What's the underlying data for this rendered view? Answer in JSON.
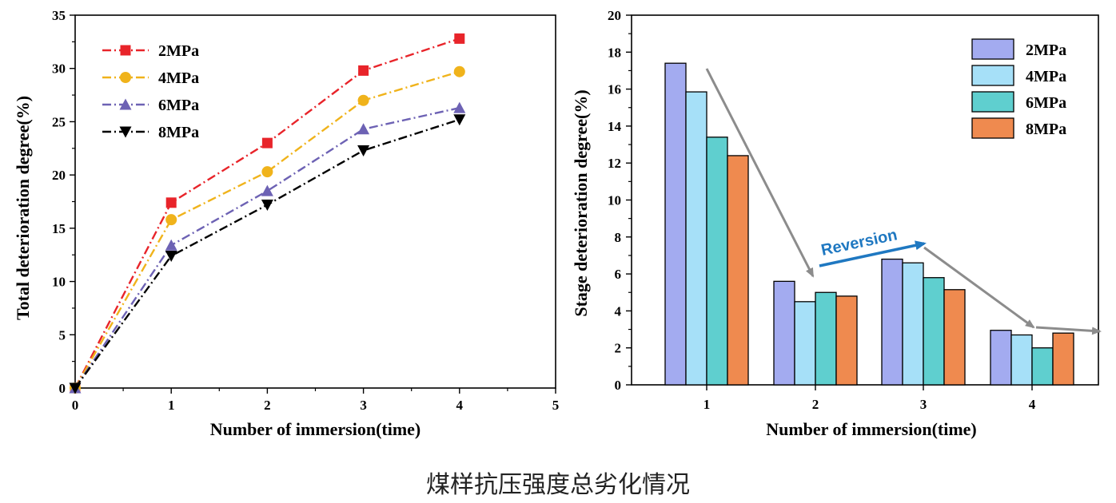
{
  "caption": "煤样抗压强度总劣化情况",
  "colors": {
    "line": {
      "2MPa": "#e8242a",
      "4MPa": "#f0b31b",
      "6MPa": "#6d62b4",
      "8MPa": "#000000"
    },
    "bar_fill": {
      "2MPa": "#a3abf0",
      "4MPa": "#a6e0f8",
      "6MPa": "#5fcfcf",
      "8MPa": "#ef8a4f"
    },
    "annotation_gray": "#8c8c8c",
    "annotation_blue": "#1f78c1"
  },
  "chart_data": [
    {
      "type": "line",
      "xlabel": "Number of immersion(time)",
      "ylabel": "Total deterioration degree(%)",
      "xlim": [
        0,
        5
      ],
      "ylim": [
        0,
        35
      ],
      "xticks": [
        0,
        1,
        2,
        3,
        4,
        5
      ],
      "yticks": [
        0,
        5,
        10,
        15,
        20,
        25,
        30,
        35
      ],
      "line_style": "dash-dot",
      "legend_position": "top-left",
      "x": [
        0,
        1,
        2,
        3,
        4
      ],
      "series": [
        {
          "name": "2MPa",
          "marker": "square",
          "values": [
            0,
            17.4,
            23.0,
            29.8,
            32.8
          ]
        },
        {
          "name": "4MPa",
          "marker": "circle",
          "values": [
            0,
            15.8,
            20.3,
            27.0,
            29.7
          ]
        },
        {
          "name": "6MPa",
          "marker": "triangle-up",
          "values": [
            0,
            13.4,
            18.5,
            24.3,
            26.3
          ]
        },
        {
          "name": "8MPa",
          "marker": "triangle-down",
          "values": [
            0,
            12.4,
            17.2,
            22.3,
            25.2
          ]
        }
      ]
    },
    {
      "type": "bar",
      "xlabel": "Number of immersion(time)",
      "ylabel": "Stage deterioration degree(%)",
      "ylim": [
        0,
        20
      ],
      "yticks": [
        0,
        2,
        4,
        6,
        8,
        10,
        12,
        14,
        16,
        18,
        20
      ],
      "categories": [
        "1",
        "2",
        "3",
        "4"
      ],
      "legend_position": "top-right",
      "series": [
        {
          "name": "2MPa",
          "values": [
            17.4,
            5.6,
            6.8,
            2.95
          ]
        },
        {
          "name": "4MPa",
          "values": [
            15.85,
            4.5,
            6.6,
            2.7
          ]
        },
        {
          "name": "6MPa",
          "values": [
            13.4,
            5.0,
            5.8,
            2.0
          ]
        },
        {
          "name": "8MPa",
          "values": [
            12.4,
            4.8,
            5.15,
            2.8
          ]
        }
      ],
      "annotations": [
        {
          "text": "Reversion",
          "color": "blue"
        }
      ]
    }
  ]
}
